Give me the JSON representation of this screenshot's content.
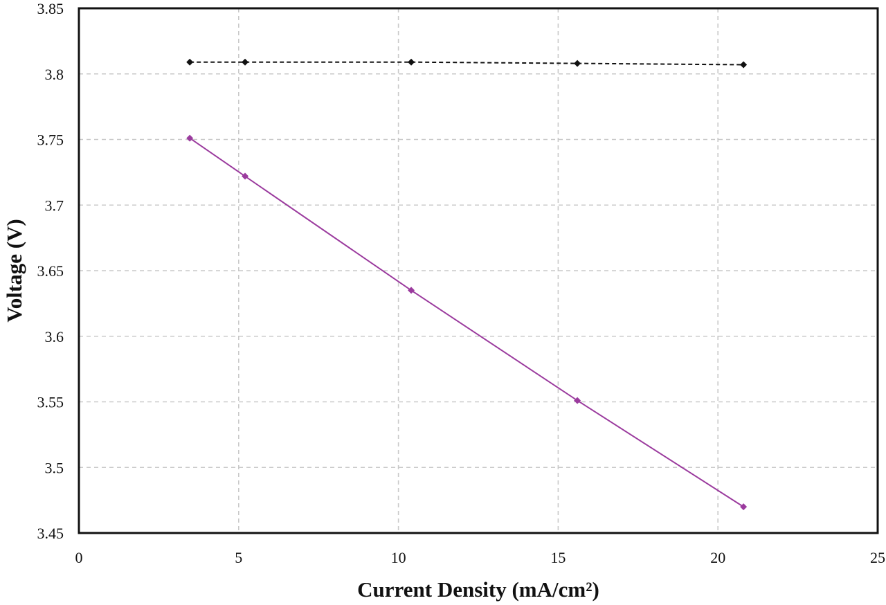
{
  "chart_data": {
    "type": "line",
    "title": "",
    "xlabel": "Current Density (mA/cm²)",
    "ylabel": "Voltage (V)",
    "xlim": [
      0,
      25
    ],
    "ylim": [
      3.45,
      3.85
    ],
    "x_ticks": [
      0,
      5,
      10,
      15,
      20,
      25
    ],
    "x_tick_labels": [
      "0",
      "5",
      "10",
      "15",
      "20",
      "25"
    ],
    "y_ticks": [
      3.45,
      3.5,
      3.55,
      3.6,
      3.65,
      3.7,
      3.75,
      3.8,
      3.85
    ],
    "y_tick_labels": [
      "3.45",
      "3.5",
      "3.55",
      "3.6",
      "3.65",
      "3.7",
      "3.75",
      "3.8",
      "3.85"
    ],
    "grid": true,
    "legend": "none",
    "series": [
      {
        "color": "#111111",
        "line_style": "dashed",
        "marker": "diamond",
        "x": [
          3.47,
          5.2,
          10.4,
          15.6,
          20.8
        ],
        "y": [
          3.809,
          3.809,
          3.809,
          3.808,
          3.807
        ]
      },
      {
        "color": "#9b3b9e",
        "line_style": "solid",
        "marker": "diamond",
        "x": [
          3.47,
          5.2,
          10.4,
          15.6,
          20.8
        ],
        "y": [
          3.751,
          3.722,
          3.635,
          3.551,
          3.47
        ]
      }
    ]
  }
}
